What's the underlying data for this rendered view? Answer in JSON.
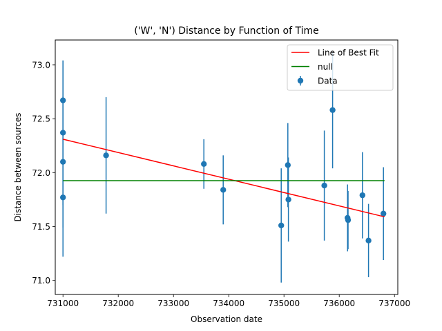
{
  "chart_data": {
    "type": "scatter",
    "title": "('W', 'N') Distance by Function of Time",
    "xlabel": "Observation date",
    "ylabel": "Distance between sources",
    "xlim": [
      730860,
      737060
    ],
    "ylim": [
      70.87,
      73.23
    ],
    "xticks": [
      731000,
      732000,
      733000,
      734000,
      735000,
      736000,
      737000
    ],
    "yticks": [
      71.0,
      71.5,
      72.0,
      72.5,
      73.0
    ],
    "xtick_labels": [
      "731000",
      "732000",
      "733000",
      "734000",
      "735000",
      "736000",
      "737000"
    ],
    "ytick_labels": [
      "71.0",
      "71.5",
      "72.0",
      "72.5",
      "73.0"
    ],
    "grid": false,
    "legend_position": "top-right",
    "series": [
      {
        "name": "Line of Best Fit",
        "kind": "line",
        "color": "#ff0000",
        "x": [
          731000,
          736820
        ],
        "y": [
          72.31,
          71.59
        ]
      },
      {
        "name": "null",
        "kind": "line",
        "color": "#008000",
        "x": [
          731000,
          736820
        ],
        "y": [
          71.925,
          71.925
        ]
      },
      {
        "name": "Data",
        "kind": "errorbar",
        "color": "#1f77b4",
        "points": [
          {
            "x": 731000,
            "y": 72.67,
            "err": 0.37
          },
          {
            "x": 731000,
            "y": 72.37,
            "err": 0.67
          },
          {
            "x": 731000,
            "y": 72.1,
            "err": 0.61
          },
          {
            "x": 731000,
            "y": 71.77,
            "err": 0.55
          },
          {
            "x": 731780,
            "y": 72.16,
            "err": 0.54
          },
          {
            "x": 733550,
            "y": 72.08,
            "err": 0.23
          },
          {
            "x": 733900,
            "y": 71.84,
            "err": 0.32
          },
          {
            "x": 734950,
            "y": 71.51,
            "err": 0.53
          },
          {
            "x": 735070,
            "y": 72.07,
            "err": 0.39
          },
          {
            "x": 735080,
            "y": 71.75,
            "err": 0.39
          },
          {
            "x": 735730,
            "y": 71.88,
            "err": 0.51
          },
          {
            "x": 735880,
            "y": 72.58,
            "err": 0.54
          },
          {
            "x": 736150,
            "y": 71.58,
            "err": 0.31
          },
          {
            "x": 736160,
            "y": 71.56,
            "err": 0.27
          },
          {
            "x": 736420,
            "y": 71.79,
            "err": 0.4
          },
          {
            "x": 736530,
            "y": 71.37,
            "err": 0.34
          },
          {
            "x": 736800,
            "y": 71.62,
            "err": 0.43
          }
        ]
      }
    ]
  }
}
